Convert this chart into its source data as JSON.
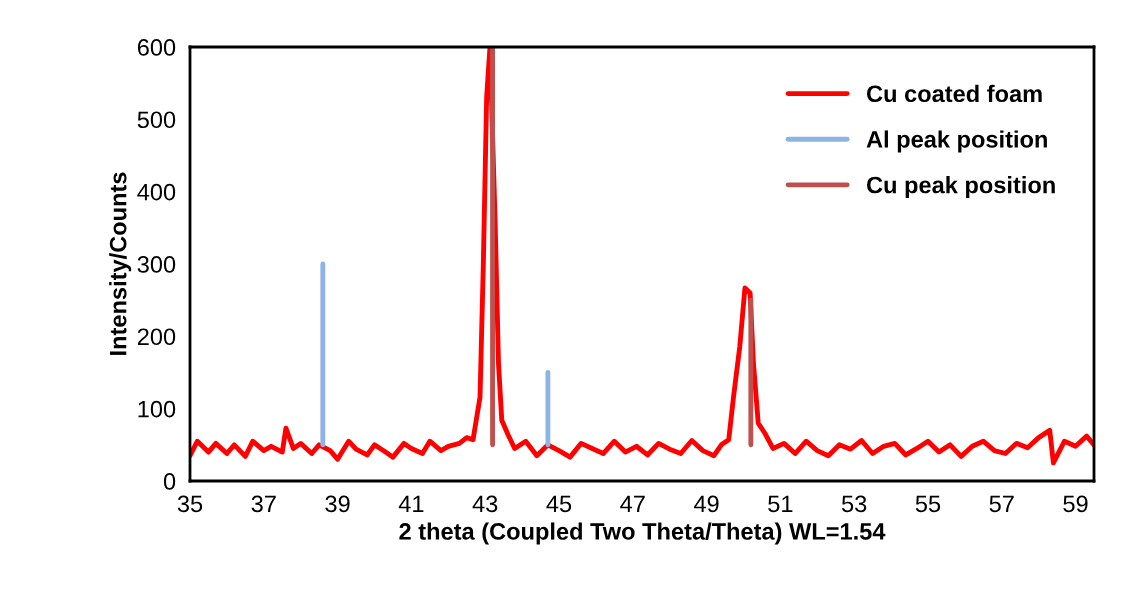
{
  "chart_data": {
    "type": "line",
    "xlabel": "2 theta (Coupled Two Theta/Theta) WL=1.54",
    "ylabel": "Intensity/Counts",
    "xlim": [
      35,
      59.5
    ],
    "xticks": [
      35,
      37,
      39,
      41,
      43,
      45,
      47,
      49,
      51,
      53,
      55,
      57,
      59
    ],
    "ylim": [
      0,
      600
    ],
    "yticks": [
      0,
      100,
      200,
      300,
      400,
      500,
      600
    ],
    "grid": false,
    "legend": "top right",
    "series": [
      {
        "name": "Cu coated foam",
        "color": "#ff0000",
        "x": [
          35.0,
          35.2,
          35.5,
          35.7,
          36.0,
          36.2,
          36.5,
          36.7,
          37.0,
          37.2,
          37.5,
          37.6,
          37.8,
          38.0,
          38.3,
          38.5,
          38.8,
          39.0,
          39.3,
          39.5,
          39.8,
          40.0,
          40.3,
          40.5,
          40.8,
          41.0,
          41.3,
          41.5,
          41.8,
          42.0,
          42.3,
          42.5,
          42.67,
          42.86,
          42.95,
          43.04,
          43.13,
          43.27,
          43.36,
          43.45,
          43.62,
          43.8,
          44.1,
          44.4,
          44.7,
          45.0,
          45.3,
          45.6,
          45.9,
          46.2,
          46.5,
          46.8,
          47.1,
          47.4,
          47.7,
          48.0,
          48.3,
          48.6,
          48.9,
          49.2,
          49.4,
          49.6,
          49.73,
          49.9,
          50.04,
          50.18,
          50.27,
          50.4,
          50.58,
          50.8,
          51.1,
          51.4,
          51.7,
          52.0,
          52.3,
          52.6,
          52.9,
          53.2,
          53.5,
          53.8,
          54.1,
          54.4,
          54.7,
          55.0,
          55.3,
          55.6,
          55.9,
          56.2,
          56.5,
          56.8,
          57.1,
          57.4,
          57.7,
          58.0,
          58.3,
          58.4,
          58.7,
          59.0,
          59.3,
          59.5
        ],
        "values": [
          35,
          55,
          40,
          52,
          38,
          50,
          34,
          55,
          42,
          48,
          40,
          73,
          45,
          52,
          38,
          50,
          42,
          30,
          55,
          44,
          36,
          50,
          40,
          33,
          52,
          45,
          38,
          55,
          42,
          48,
          52,
          60,
          57,
          116,
          300,
          531,
          600,
          357,
          163,
          84,
          64,
          45,
          55,
          35,
          50,
          42,
          33,
          52,
          45,
          38,
          55,
          40,
          48,
          36,
          52,
          44,
          38,
          56,
          42,
          35,
          50,
          57,
          116,
          186,
          267,
          260,
          163,
          80,
          66,
          45,
          52,
          38,
          55,
          42,
          35,
          50,
          44,
          56,
          38,
          48,
          52,
          36,
          45,
          55,
          40,
          50,
          34,
          48,
          55,
          42,
          38,
          52,
          46,
          60,
          70,
          25,
          55,
          48,
          62,
          50
        ]
      },
      {
        "name": "Al peak position",
        "color": "#8eb4e3",
        "x": [
          38.6,
          38.6,
          null,
          44.7,
          44.7
        ],
        "values": [
          50,
          300,
          null,
          50,
          150
        ]
      },
      {
        "name": "Cu peak position",
        "color": "#c0504d",
        "x": [
          43.2,
          43.2,
          null,
          50.2,
          50.2
        ],
        "values": [
          50,
          600,
          null,
          50,
          250
        ]
      }
    ]
  }
}
